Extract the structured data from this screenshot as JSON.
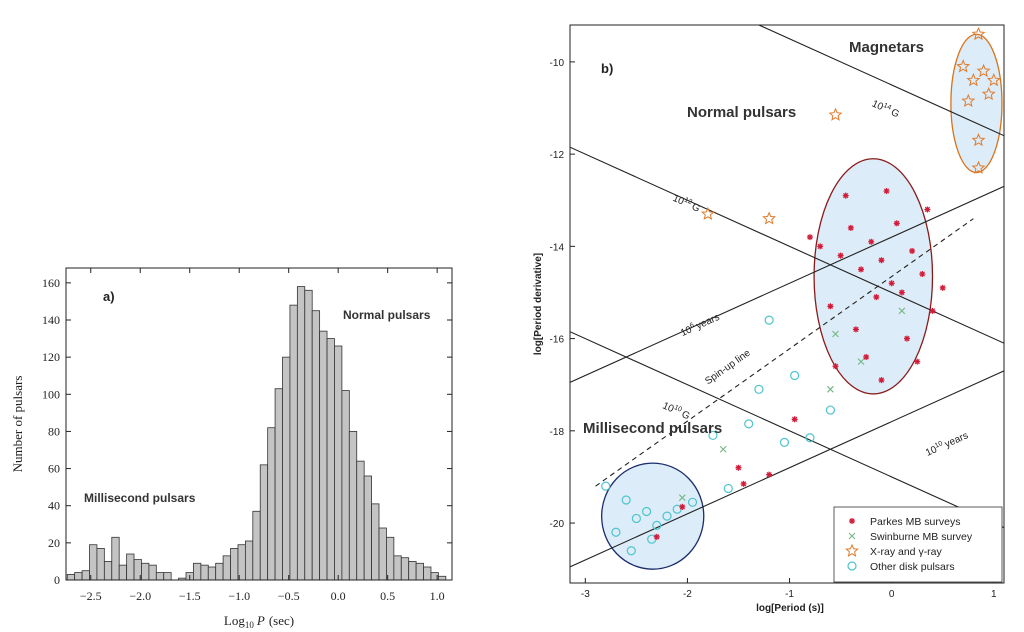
{
  "chart_data": [
    {
      "type": "bar",
      "panel_label": "a)",
      "title": "",
      "xlabel": "Log",
      "xlabel_sub": "10",
      "xlabel_var": "P",
      "xlabel_unit": "(sec)",
      "ylabel": "Number of pulsars",
      "xlim": [
        -2.75,
        1.15
      ],
      "ylim": [
        0,
        168
      ],
      "x_ticks": [
        -2.5,
        -2.0,
        -1.5,
        -1.0,
        -0.5,
        0.0,
        0.5,
        1.0
      ],
      "x_tick_labels": [
        "−2.5",
        "−2.0",
        "−1.5",
        "−1.0",
        "−0.5",
        "0.0",
        "0.5",
        "1.0"
      ],
      "y_ticks": [
        0,
        20,
        40,
        60,
        80,
        100,
        120,
        140,
        160
      ],
      "y_tick_labels": [
        "0",
        "20",
        "40",
        "60",
        "80",
        "100",
        "120",
        "140",
        "160"
      ],
      "bin_width": 0.075,
      "bin_centers": [
        -2.7,
        -2.625,
        -2.55,
        -2.475,
        -2.4,
        -2.325,
        -2.25,
        -2.175,
        -2.1,
        -2.025,
        -1.95,
        -1.875,
        -1.8,
        -1.725,
        -1.65,
        -1.575,
        -1.5,
        -1.425,
        -1.35,
        -1.275,
        -1.2,
        -1.125,
        -1.05,
        -0.975,
        -0.9,
        -0.825,
        -0.75,
        -0.675,
        -0.6,
        -0.525,
        -0.45,
        -0.375,
        -0.3,
        -0.225,
        -0.15,
        -0.075,
        0.0,
        0.075,
        0.15,
        0.225,
        0.3,
        0.375,
        0.45,
        0.525,
        0.6,
        0.675,
        0.75,
        0.825,
        0.9,
        0.975,
        1.05
      ],
      "values": [
        3,
        4,
        5,
        19,
        17,
        10,
        23,
        8,
        14,
        11,
        9,
        8,
        4,
        4,
        0,
        1,
        4,
        9,
        8,
        7,
        9,
        13,
        17,
        19,
        21,
        37,
        62,
        82,
        103,
        120,
        148,
        158,
        156,
        145,
        134,
        130,
        126,
        102,
        80,
        64,
        56,
        41,
        28,
        23,
        13,
        12,
        10,
        9,
        7,
        4,
        2
      ],
      "annotations": [
        "Normal pulsars",
        "Millisecond pulsars"
      ]
    },
    {
      "type": "scatter",
      "panel_label": "b)",
      "title": "",
      "xlabel": "log[Period (s)]",
      "ylabel": "log[Period derivative]",
      "xlim": [
        -3.15,
        1.1
      ],
      "ylim": [
        -21.3,
        -9.2
      ],
      "x_ticks": [
        -3,
        -2,
        -1,
        0,
        1
      ],
      "x_tick_labels": [
        "-3",
        "-2",
        "-1",
        "0",
        "1"
      ],
      "y_ticks": [
        -10,
        -12,
        -14,
        -16,
        -18,
        -20
      ],
      "y_tick_labels": [
        "-10",
        "-12",
        "-14",
        "-16",
        "-18",
        "-20"
      ],
      "group_labels": [
        "Magnetars",
        "Normal pulsars",
        "Millisecond pulsars"
      ],
      "field_lines": [
        {
          "label": "10",
          "exp": "14",
          "unit": "G",
          "label_at": [
            -0.2,
            -10.95
          ]
        },
        {
          "label": "10",
          "exp": "12",
          "unit": "G",
          "label_at": [
            -2.15,
            -13.0
          ]
        },
        {
          "label": "10",
          "exp": "10",
          "unit": "G",
          "label_at": [
            -2.25,
            -17.5
          ]
        }
      ],
      "age_lines": [
        {
          "label": "10",
          "exp": "6",
          "unit": "years",
          "label_at": [
            -2.05,
            -15.95
          ]
        },
        {
          "label": "10",
          "exp": "10",
          "unit": "years",
          "label_at": [
            0.35,
            -18.55
          ]
        }
      ],
      "spin_up_label": "Spin-up line",
      "legend": {
        "position": "bottom-right",
        "entries": [
          "Parkes MB surveys",
          "Swinburne MB survey",
          "X-ray and γ-ray",
          "Other disk pulsars"
        ]
      },
      "series": [
        {
          "name": "Parkes MB surveys",
          "marker": "star-red",
          "points": [
            [
              -0.5,
              -14.2
            ],
            [
              -0.4,
              -13.6
            ],
            [
              -0.3,
              -14.5
            ],
            [
              -0.2,
              -13.9
            ],
            [
              -0.1,
              -14.3
            ],
            [
              0.0,
              -14.8
            ],
            [
              0.1,
              -15.0
            ],
            [
              -0.6,
              -15.3
            ],
            [
              -0.35,
              -15.8
            ],
            [
              -0.15,
              -15.1
            ],
            [
              0.05,
              -13.5
            ],
            [
              0.2,
              -14.1
            ],
            [
              0.3,
              -14.6
            ],
            [
              -0.7,
              -14.0
            ],
            [
              -0.25,
              -16.4
            ],
            [
              0.15,
              -16.0
            ],
            [
              -0.05,
              -12.8
            ],
            [
              0.35,
              -13.2
            ],
            [
              -0.45,
              -12.9
            ],
            [
              0.4,
              -15.4
            ],
            [
              -0.55,
              -16.6
            ],
            [
              -0.1,
              -16.9
            ],
            [
              0.25,
              -16.5
            ],
            [
              -0.8,
              -13.8
            ],
            [
              0.5,
              -14.9
            ],
            [
              -1.5,
              -18.8
            ],
            [
              -1.45,
              -19.15
            ],
            [
              -1.2,
              -18.95
            ],
            [
              -0.95,
              -17.75
            ],
            [
              -2.3,
              -20.3
            ],
            [
              -2.05,
              -19.65
            ]
          ]
        },
        {
          "name": "Swinburne MB survey",
          "marker": "cross-green",
          "points": [
            [
              -0.55,
              -15.9
            ],
            [
              -0.3,
              -16.5
            ],
            [
              0.1,
              -15.4
            ],
            [
              -0.6,
              -17.1
            ],
            [
              -1.65,
              -18.4
            ],
            [
              -2.05,
              -19.45
            ]
          ]
        },
        {
          "name": "X-ray and γ-ray",
          "marker": "star-orange",
          "points": [
            [
              0.85,
              -9.4
            ],
            [
              0.7,
              -10.1
            ],
            [
              0.8,
              -10.4
            ],
            [
              0.9,
              -10.2
            ],
            [
              1.0,
              -10.4
            ],
            [
              0.75,
              -10.85
            ],
            [
              0.95,
              -10.7
            ],
            [
              0.85,
              -11.7
            ],
            [
              0.85,
              -12.3
            ],
            [
              -0.55,
              -11.15
            ],
            [
              -1.8,
              -13.3
            ],
            [
              -1.2,
              -13.4
            ]
          ]
        },
        {
          "name": "Other disk pulsars",
          "marker": "circle-cyan",
          "points": [
            [
              -2.8,
              -19.2
            ],
            [
              -2.6,
              -19.5
            ],
            [
              -2.5,
              -19.9
            ],
            [
              -2.4,
              -19.75
            ],
            [
              -2.3,
              -20.05
            ],
            [
              -2.2,
              -19.85
            ],
            [
              -2.7,
              -20.2
            ],
            [
              -2.55,
              -20.6
            ],
            [
              -2.35,
              -20.35
            ],
            [
              -2.1,
              -19.7
            ],
            [
              -1.95,
              -19.55
            ],
            [
              -1.6,
              -19.25
            ],
            [
              -1.3,
              -17.1
            ],
            [
              -1.4,
              -17.85
            ],
            [
              -1.75,
              -18.1
            ],
            [
              -0.8,
              -18.15
            ],
            [
              -1.05,
              -18.25
            ],
            [
              -0.95,
              -16.8
            ],
            [
              -0.6,
              -17.55
            ],
            [
              -1.2,
              -15.6
            ]
          ]
        }
      ]
    }
  ]
}
